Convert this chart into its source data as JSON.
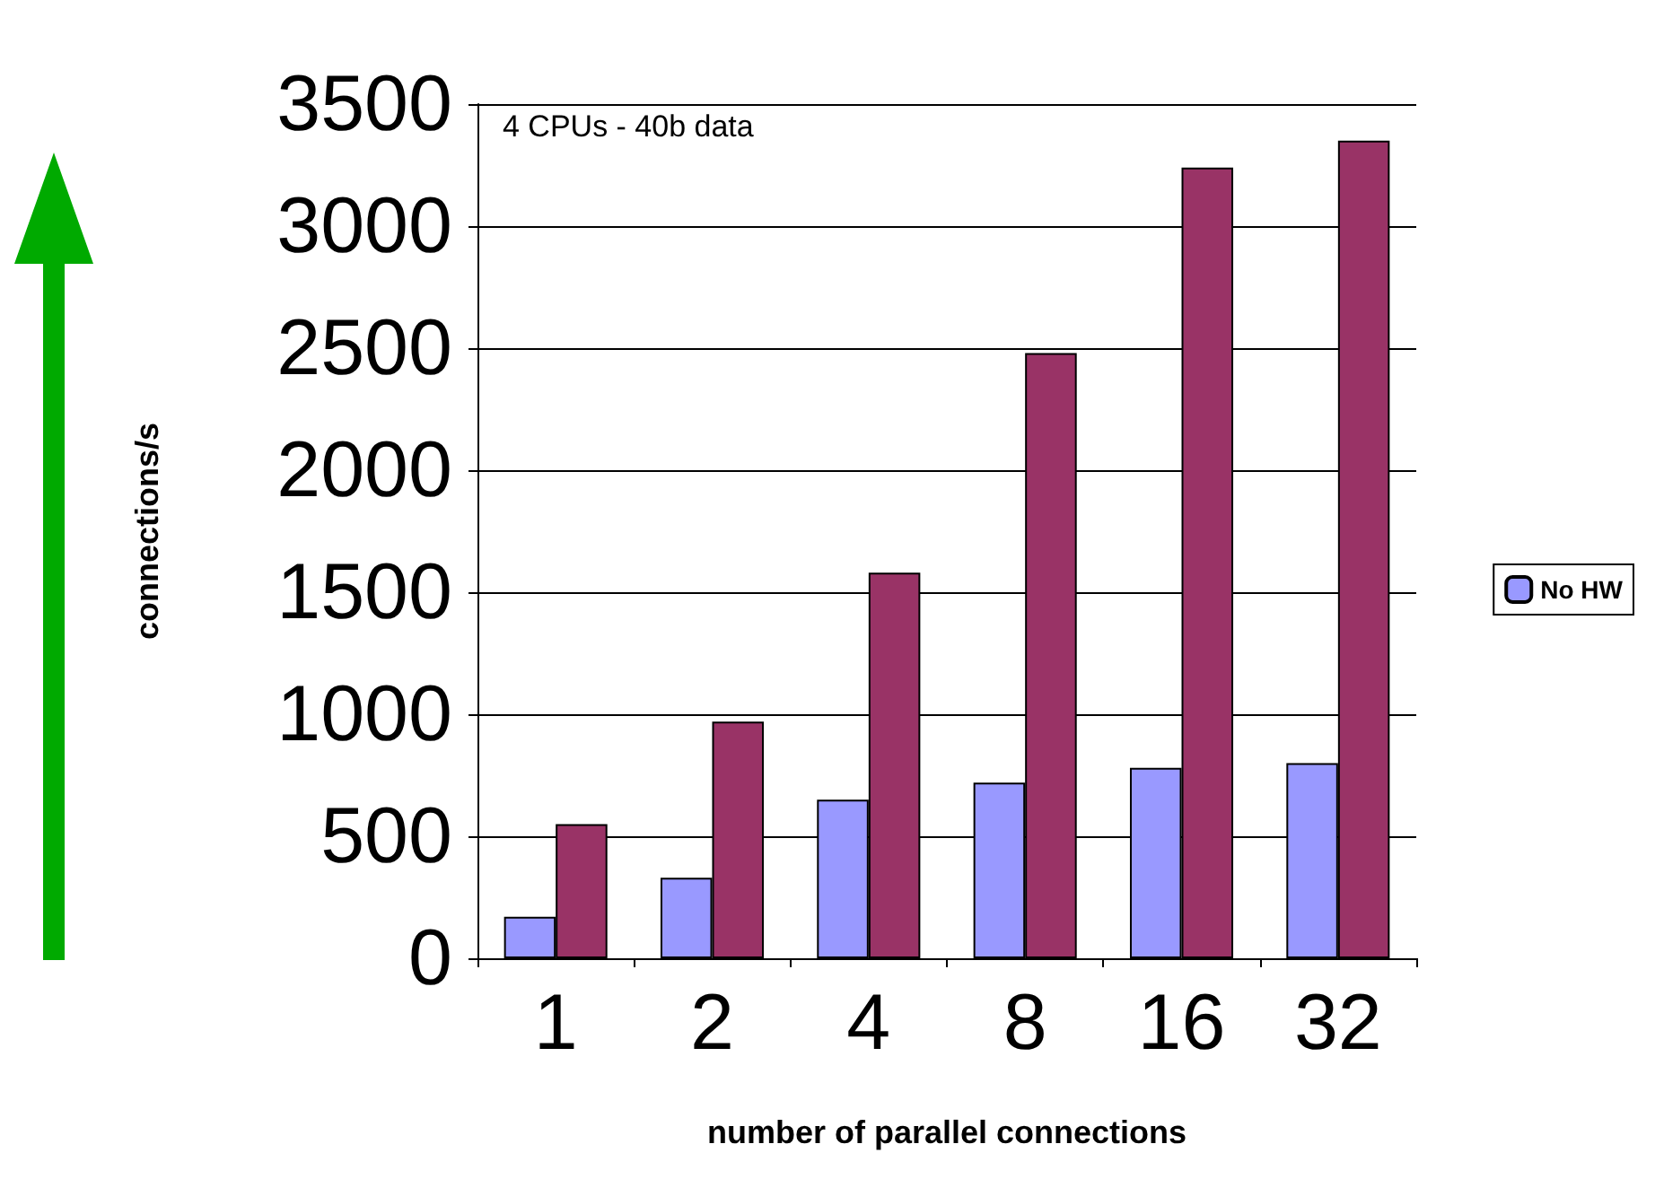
{
  "chart_data": {
    "type": "bar",
    "xlabel": "number of parallel connections",
    "ylabel": "connections/s",
    "annotations": [
      "4 CPUs - 40b data"
    ],
    "categories": [
      "1",
      "2",
      "4",
      "8",
      "16",
      "32"
    ],
    "series": [
      {
        "name": "No HW",
        "color": "#9999ff",
        "values": [
          170,
          330,
          650,
          720,
          780,
          800
        ]
      },
      {
        "color": "#993366",
        "values": [
          550,
          970,
          1580,
          2480,
          3240,
          3350
        ]
      }
    ],
    "ylim": [
      0,
      3500
    ],
    "yticks": [
      0,
      500,
      1000,
      1500,
      2000,
      2500,
      3000,
      3500
    ],
    "grid": "y",
    "legend": "right"
  }
}
